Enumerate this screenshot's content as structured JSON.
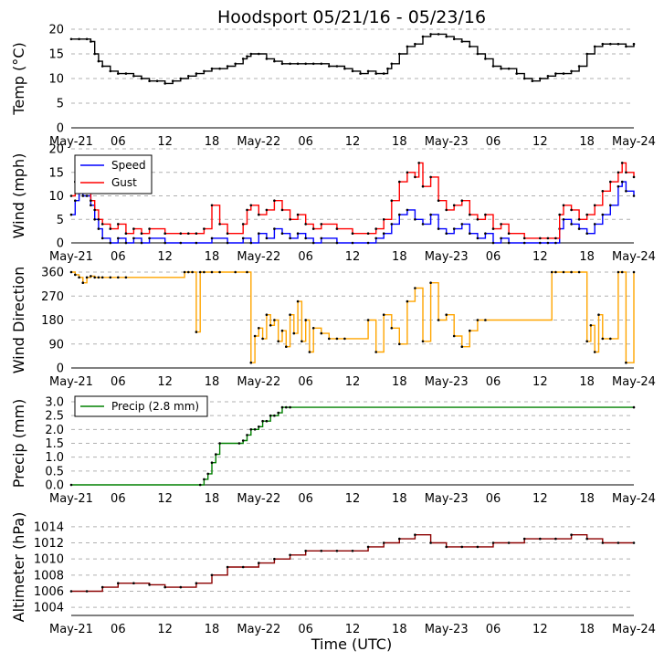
{
  "figure": {
    "title": "Hoodsport 05/21/16 - 05/23/16",
    "xlabel": "Time (UTC)",
    "x_tick_labels": [
      "May-21",
      "06",
      "12",
      "18",
      "May-22",
      "06",
      "12",
      "18",
      "May-23",
      "06",
      "12",
      "18",
      "May-24"
    ],
    "x_range_hours": [
      0,
      72
    ]
  },
  "chart_data": [
    {
      "type": "line",
      "ylabel": "Temp ($^\\circ$C)",
      "ylabel_text": "Temp (°C)",
      "ylim": [
        0,
        20
      ],
      "yticks": [
        "0",
        "5",
        "10",
        "15",
        "20"
      ],
      "grid": "horizontal dashed",
      "series": [
        {
          "color": "#000000",
          "x": [
            0,
            1,
            2,
            2.5,
            3,
            3.5,
            4,
            5,
            6,
            7,
            8,
            9,
            10,
            11,
            12,
            13,
            14,
            15,
            16,
            17,
            18,
            19,
            20,
            21,
            22,
            22.5,
            23,
            24,
            25,
            26,
            27,
            28,
            29,
            30,
            31,
            32,
            33,
            34,
            35,
            36,
            37,
            38,
            39,
            40,
            40.5,
            41,
            42,
            43,
            44,
            45,
            46,
            47,
            48,
            49,
            50,
            51,
            52,
            53,
            54,
            55,
            56,
            57,
            58,
            59,
            60,
            61,
            62,
            63,
            64,
            65,
            66,
            67,
            68,
            69,
            70,
            71,
            72
          ],
          "y": [
            18,
            18,
            18,
            17.5,
            15,
            13.5,
            12.5,
            11.5,
            11,
            11,
            10.5,
            10,
            9.5,
            9.5,
            9,
            9.5,
            10,
            10.5,
            11,
            11.5,
            12,
            12,
            12.5,
            13,
            14,
            14.5,
            15,
            15,
            14,
            13.5,
            13,
            13,
            13,
            13,
            13,
            13,
            12.5,
            12.5,
            12,
            11.5,
            11,
            11.5,
            11,
            11,
            12,
            13,
            15,
            16.5,
            17,
            18.5,
            19,
            19,
            18.5,
            18,
            17.5,
            16.5,
            15,
            14,
            12.5,
            12,
            12,
            11,
            10,
            9.5,
            10,
            10.5,
            11,
            11,
            11.5,
            12.5,
            15,
            16.5,
            17,
            17,
            17,
            16.5,
            17
          ]
        }
      ]
    },
    {
      "type": "line",
      "ylabel": "Wind (mph)",
      "ylim": [
        0,
        20
      ],
      "yticks": [
        "0",
        "5",
        "10",
        "15",
        "20"
      ],
      "grid": "horizontal dashed",
      "legend": "top-left",
      "series": [
        {
          "name": "Speed",
          "color": "#0000ff",
          "x": [
            0,
            0.5,
            1,
            1.5,
            2,
            2.5,
            3,
            3.5,
            4,
            5,
            6,
            7,
            8,
            9,
            10,
            12,
            14,
            16,
            18,
            20,
            22,
            23,
            24,
            25,
            26,
            27,
            28,
            29,
            30,
            31,
            32,
            34,
            36,
            38,
            39,
            40,
            41,
            42,
            43,
            44,
            45,
            46,
            47,
            48,
            49,
            50,
            51,
            52,
            53,
            54,
            55,
            56,
            58,
            60,
            61,
            62,
            62.5,
            63,
            64,
            65,
            66,
            67,
            68,
            69,
            70,
            70.5,
            71,
            72
          ],
          "y": [
            6,
            9,
            11,
            10,
            10,
            8,
            5,
            3,
            1,
            0,
            1,
            0,
            1,
            0,
            1,
            0,
            0,
            0,
            1,
            0,
            1,
            0,
            2,
            1,
            3,
            2,
            1,
            2,
            1,
            0,
            1,
            0,
            0,
            0,
            1,
            2,
            4,
            6,
            7,
            5,
            4,
            6,
            3,
            2,
            3,
            4,
            2,
            1,
            2,
            0,
            1,
            0,
            0,
            0,
            0,
            0,
            3,
            5,
            4,
            3,
            2,
            4,
            6,
            8,
            12,
            13,
            11,
            10
          ]
        },
        {
          "name": "Gust",
          "color": "#ff0000",
          "x": [
            0,
            0.5,
            1,
            1.5,
            2,
            2.5,
            3,
            3.5,
            4,
            5,
            6,
            7,
            8,
            9,
            10,
            12,
            14,
            15,
            16,
            17,
            18,
            19,
            20,
            22,
            22.5,
            23,
            24,
            25,
            26,
            27,
            28,
            29,
            30,
            31,
            32,
            34,
            36,
            38,
            39,
            40,
            41,
            42,
            43,
            44,
            44.5,
            45,
            46,
            47,
            48,
            49,
            50,
            51,
            52,
            53,
            54,
            55,
            56,
            58,
            60,
            61,
            62,
            62.5,
            63,
            64,
            65,
            66,
            67,
            68,
            69,
            70,
            70.5,
            71,
            72
          ],
          "y": [
            10,
            13,
            12,
            12,
            11,
            9,
            7,
            5,
            4,
            3,
            4,
            2,
            3,
            2,
            3,
            2,
            2,
            2,
            2,
            3,
            8,
            4,
            2,
            4,
            7,
            8,
            6,
            7,
            9,
            7,
            5,
            6,
            4,
            3,
            4,
            3,
            2,
            2,
            3,
            5,
            9,
            13,
            15,
            14,
            17,
            12,
            14,
            9,
            7,
            8,
            9,
            6,
            5,
            6,
            3,
            4,
            2,
            1,
            1,
            1,
            1,
            6,
            8,
            7,
            5,
            6,
            8,
            11,
            13,
            15,
            17,
            15,
            14
          ]
        }
      ]
    },
    {
      "type": "line",
      "ylabel": "Wind Direction",
      "ylim": [
        0,
        360
      ],
      "yticks": [
        "0",
        "90",
        "180",
        "270",
        "360"
      ],
      "grid": "horizontal dashed",
      "series": [
        {
          "color": "#ffa500",
          "x": [
            0,
            0.5,
            1,
            1.5,
            2,
            2.5,
            3,
            3.5,
            4,
            5,
            6,
            7,
            14.5,
            15,
            15.5,
            16,
            16.5,
            17,
            18,
            19,
            21,
            22.5,
            23,
            23.5,
            24,
            24.5,
            25,
            25.5,
            26,
            26.5,
            27,
            27.5,
            28,
            28.5,
            29,
            29.5,
            30,
            30.5,
            31,
            32,
            33,
            34,
            35,
            38,
            39,
            40,
            41,
            42,
            43,
            44,
            45,
            46,
            47,
            48,
            49,
            50,
            51,
            52,
            53,
            61.5,
            62,
            63,
            64,
            65,
            66,
            66.5,
            67,
            67.5,
            68,
            69,
            70,
            70.5,
            71,
            72
          ],
          "y": [
            360,
            350,
            340,
            320,
            340,
            345,
            340,
            340,
            340,
            340,
            340,
            340,
            360,
            360,
            360,
            135,
            360,
            360,
            360,
            360,
            360,
            360,
            20,
            120,
            150,
            110,
            200,
            160,
            180,
            100,
            140,
            80,
            200,
            130,
            250,
            100,
            180,
            60,
            150,
            130,
            110,
            110,
            110,
            180,
            60,
            200,
            150,
            90,
            250,
            300,
            100,
            320,
            180,
            200,
            120,
            80,
            140,
            180,
            180,
            360,
            360,
            360,
            360,
            360,
            100,
            160,
            60,
            200,
            110,
            110,
            360,
            360,
            20,
            360
          ]
        }
      ]
    },
    {
      "type": "line",
      "ylabel": "Precip (mm)",
      "ylim": [
        0,
        3.0
      ],
      "yticks": [
        "0.0",
        "0.5",
        "1.0",
        "1.5",
        "2.0",
        "2.5",
        "3.0"
      ],
      "grid": "horizontal dashed",
      "legend": "top-left",
      "series": [
        {
          "name": "Precip (2.8 mm)",
          "color": "#008000",
          "x": [
            0,
            16.5,
            17,
            17.5,
            18,
            18.5,
            19,
            21.5,
            22,
            22.5,
            23,
            23.5,
            24,
            24.5,
            25,
            25.5,
            26,
            26.5,
            27,
            27.5,
            28,
            72
          ],
          "y": [
            0,
            0,
            0.2,
            0.4,
            0.8,
            1.1,
            1.5,
            1.5,
            1.6,
            1.8,
            2.0,
            2.0,
            2.1,
            2.3,
            2.3,
            2.5,
            2.5,
            2.6,
            2.8,
            2.8,
            2.8,
            2.8
          ]
        }
      ]
    },
    {
      "type": "line",
      "ylabel": "Altimeter (hPa)",
      "ylim": [
        1003,
        1015
      ],
      "yticks": [
        "1004",
        "1006",
        "1008",
        "1010",
        "1012",
        "1014"
      ],
      "grid": "horizontal dashed",
      "series": [
        {
          "color": "#8b0000",
          "x": [
            0,
            2,
            4,
            6,
            8,
            10,
            12,
            14,
            16,
            18,
            20,
            22,
            24,
            26,
            28,
            30,
            32,
            34,
            36,
            38,
            40,
            42,
            44,
            46,
            48,
            50,
            52,
            54,
            56,
            58,
            60,
            62,
            64,
            66,
            68,
            70,
            72
          ],
          "y": [
            1006,
            1006,
            1006.5,
            1007,
            1007,
            1006.8,
            1006.5,
            1006.5,
            1007,
            1008,
            1009,
            1009,
            1009.5,
            1010,
            1010.5,
            1011,
            1011,
            1011,
            1011,
            1011.5,
            1012,
            1012.5,
            1013,
            1012,
            1011.5,
            1011.5,
            1011.5,
            1012,
            1012,
            1012.5,
            1012.5,
            1012.5,
            1013,
            1012.5,
            1012,
            1012,
            1012
          ]
        }
      ]
    }
  ]
}
